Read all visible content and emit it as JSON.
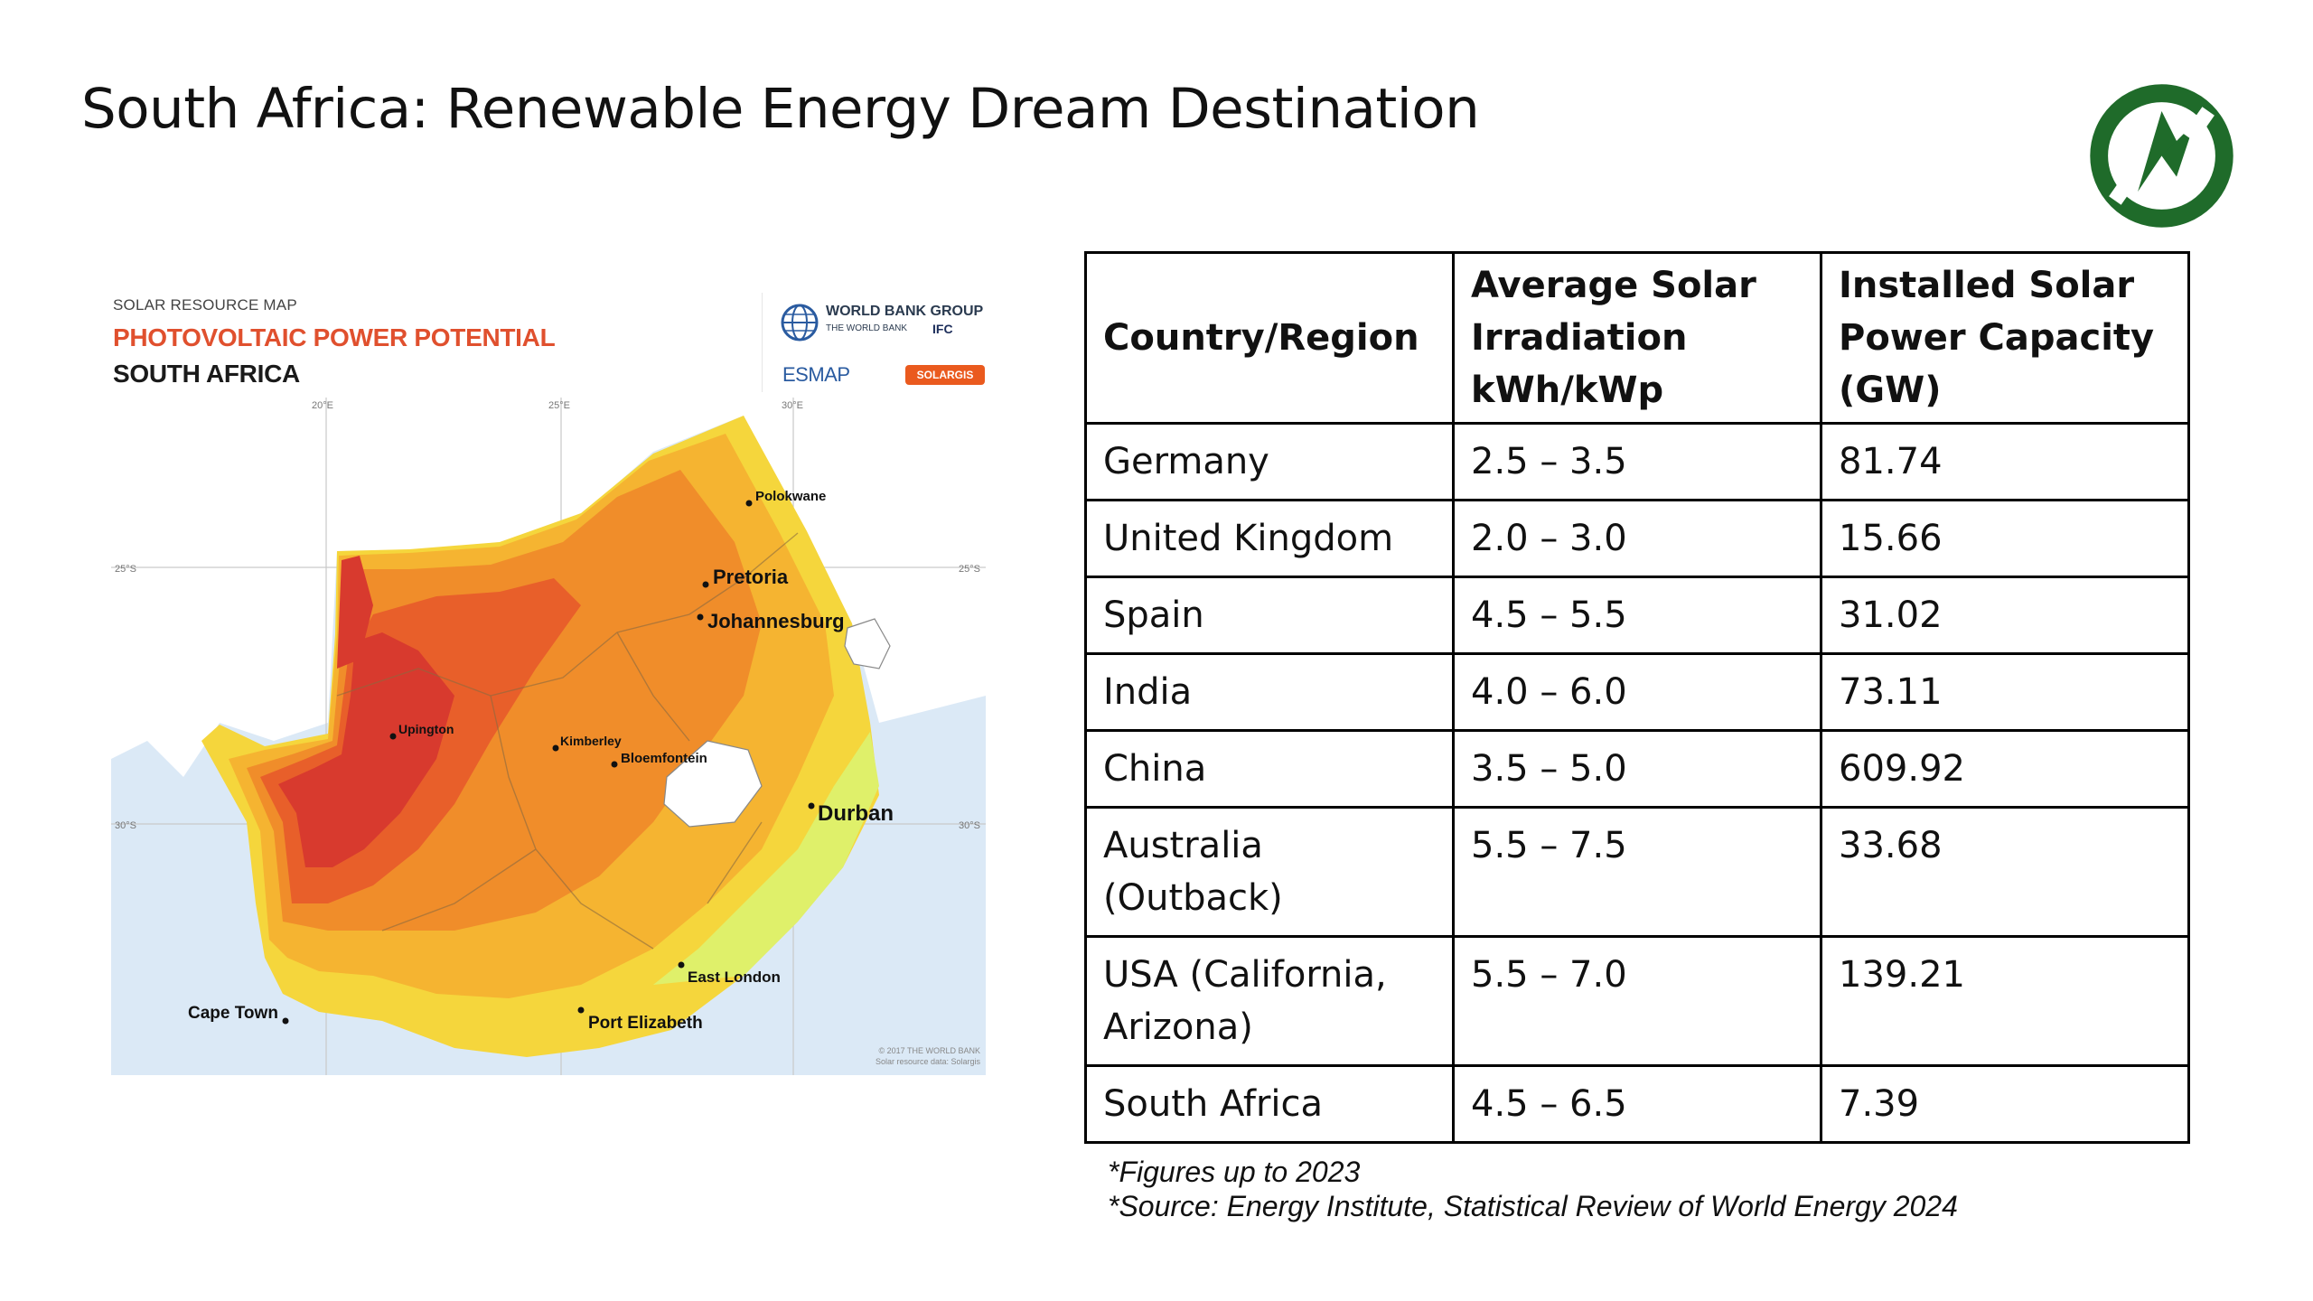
{
  "slide": {
    "title": "South Africa: Renewable Energy Dream Destination"
  },
  "logo": {
    "icon": "compass-leaf-logo-icon",
    "color": "#1f6b2a"
  },
  "map": {
    "kicker": "SOLAR RESOURCE MAP",
    "heading": "PHOTOVOLTAIC POWER POTENTIAL",
    "country": "SOUTH AFRICA",
    "orgs": {
      "world_bank": "WORLD BANK GROUP",
      "world_bank_sub": "THE WORLD BANK",
      "ifc": "IFC",
      "esmap": "ESMAP",
      "solargis": "SOLARGIS"
    },
    "cities": {
      "polokwane": "Polokwane",
      "pretoria": "Pretoria",
      "johannesburg": "Johannesburg",
      "upington": "Upington",
      "kimberley": "Kimberley",
      "bloemfontein": "Bloemfontein",
      "durban": "Durban",
      "east_london": "East London",
      "port_elizabeth": "Port Elizabeth",
      "cape_town": "Cape Town"
    },
    "graticule": {
      "lon20": "20°E",
      "lon25": "25°E",
      "lon30": "30°E",
      "lat25_left": "25°S",
      "lat25_right": "25°S",
      "lat30_left": "30°S",
      "lat30_right": "30°S"
    },
    "credit_line1": "© 2017 THE WORLD BANK",
    "credit_line2": "Solar resource data: Solargis",
    "palette": {
      "ocean": "#dbe9f6",
      "land_other": "#ffffff",
      "very_high": "#d83a2e",
      "high": "#e85f2a",
      "med_high": "#f08d2a",
      "medium": "#f5b431",
      "low": "#f5d63c",
      "coast_low": "#dff06a"
    }
  },
  "table": {
    "headers": {
      "country": "Country/Region",
      "irradiation": "Average Solar Irradiation kWh/kWp",
      "capacity": "Installed Solar Power Capacity (GW)"
    },
    "rows": [
      {
        "country": "Germany",
        "irradiation": "2.5 – 3.5",
        "capacity": "81.74"
      },
      {
        "country": "United Kingdom",
        "irradiation": "2.0 – 3.0",
        "capacity": "15.66"
      },
      {
        "country": "Spain",
        "irradiation": "4.5 – 5.5",
        "capacity": "31.02"
      },
      {
        "country": "India",
        "irradiation": "4.0 – 6.0",
        "capacity": "73.11"
      },
      {
        "country": "China",
        "irradiation": "3.5 – 5.0",
        "capacity": "609.92"
      },
      {
        "country": "Australia (Outback)",
        "irradiation": "5.5 – 7.5",
        "capacity": "33.68"
      },
      {
        "country": "USA (California, Arizona)",
        "irradiation": "5.5 – 7.0",
        "capacity": "139.21"
      },
      {
        "country": "South Africa",
        "irradiation": "4.5 – 6.5",
        "capacity": "7.39"
      }
    ]
  },
  "footnotes": {
    "line1": "*Figures up to 2023",
    "line2": "*Source: Energy Institute, Statistical Review of World Energy 2024"
  }
}
